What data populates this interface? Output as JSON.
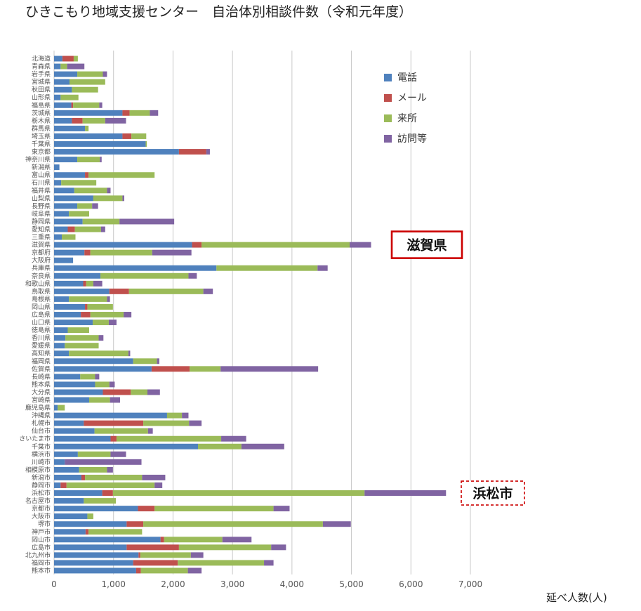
{
  "page": {
    "title": "ひきこもり地域支援センター　自治体別相談件数（令和元年度）",
    "x_unit_label": "延べ人数(人)"
  },
  "colors": {
    "phone": "#4f81bd",
    "mail": "#c0504d",
    "visit_center": "#9bbb59",
    "home_visit": "#8064a2",
    "gridline": "#c8c8c8",
    "callout_border": "#cc0000"
  },
  "callouts": [
    {
      "label": "滋賀県",
      "target": "滋賀県",
      "style": "solid"
    },
    {
      "label": "浜松市",
      "target": "浜松市",
      "style": "dashed"
    }
  ],
  "chart_data": {
    "type": "bar",
    "orientation": "horizontal",
    "stacked": true,
    "title": "ひきこもり地域支援センター　自治体別相談件数（令和元年度）",
    "xlabel": "延べ人数(人)",
    "ylabel": "",
    "xlim": [
      0,
      7000
    ],
    "xticks": [
      0,
      1000,
      2000,
      3000,
      4000,
      5000,
      6000,
      7000
    ],
    "xtick_labels": [
      "0",
      "1,000",
      "2,000",
      "3,000",
      "4,000",
      "5,000",
      "6,000",
      "7,000"
    ],
    "grid": true,
    "legend_position": "top-right",
    "categories": [
      "北海道",
      "青森県",
      "岩手県",
      "宮城県",
      "秋田県",
      "山形県",
      "福島県",
      "茨城県",
      "栃木県",
      "群馬県",
      "埼玉県",
      "千葉県",
      "東京都",
      "神奈川県",
      "新潟県",
      "富山県",
      "石川県",
      "福井県",
      "山梨県",
      "長野県",
      "岐阜県",
      "静岡県",
      "愛知県",
      "三重県",
      "滋賀県",
      "京都府",
      "大阪府",
      "兵庫県",
      "奈良県",
      "和歌山県",
      "鳥取県",
      "島根県",
      "岡山県",
      "広島県",
      "山口県",
      "徳島県",
      "香川県",
      "愛媛県",
      "高知県",
      "福岡県",
      "佐賀県",
      "長崎県",
      "熊本県",
      "大分県",
      "宮崎県",
      "鹿児島県",
      "沖縄県",
      "札幌市",
      "仙台市",
      "さいたま市",
      "千葉市",
      "横浜市",
      "川崎市",
      "相模原市",
      "新潟市",
      "静岡市",
      "浜松市",
      "名古屋市",
      "京都市",
      "大阪市",
      "堺市",
      "神戸市",
      "岡山市",
      "広島市",
      "北九州市",
      "福岡市",
      "熊本市"
    ],
    "series": [
      {
        "name": "電話",
        "values": [
          140,
          110,
          390,
          260,
          300,
          110,
          290,
          1150,
          300,
          520,
          1150,
          1540,
          2100,
          390,
          90,
          520,
          120,
          340,
          660,
          390,
          250,
          480,
          230,
          130,
          2320,
          510,
          320,
          2730,
          780,
          490,
          930,
          250,
          520,
          450,
          650,
          230,
          190,
          180,
          250,
          1330,
          1640,
          440,
          690,
          820,
          590,
          60,
          1900,
          500,
          680,
          950,
          2420,
          400,
          180,
          420,
          460,
          110,
          810,
          500,
          1410,
          560,
          1220,
          530,
          1790,
          1220,
          1420,
          1330,
          1380
        ]
      },
      {
        "name": "メール",
        "values": [
          190,
          0,
          0,
          0,
          0,
          0,
          30,
          120,
          180,
          0,
          150,
          0,
          460,
          0,
          0,
          60,
          0,
          0,
          0,
          0,
          0,
          0,
          120,
          0,
          160,
          100,
          0,
          0,
          0,
          50,
          330,
          0,
          40,
          160,
          0,
          0,
          0,
          0,
          0,
          0,
          640,
          0,
          0,
          470,
          0,
          0,
          0,
          1000,
          0,
          100,
          0,
          0,
          0,
          0,
          60,
          100,
          180,
          0,
          280,
          0,
          280,
          50,
          60,
          880,
          30,
          750,
          80
        ]
      },
      {
        "name": "来所",
        "values": [
          70,
          110,
          430,
          600,
          440,
          300,
          440,
          340,
          380,
          60,
          250,
          20,
          0,
          380,
          0,
          1110,
          590,
          550,
          490,
          250,
          340,
          620,
          440,
          230,
          2490,
          1040,
          0,
          1700,
          1480,
          120,
          1250,
          640,
          430,
          560,
          270,
          360,
          560,
          570,
          1000,
          400,
          520,
          250,
          240,
          280,
          350,
          120,
          250,
          770,
          900,
          1760,
          730,
          550,
          0,
          470,
          960,
          1480,
          4230,
          540,
          2000,
          100,
          3020,
          900,
          980,
          1550,
          850,
          1450,
          790
        ]
      },
      {
        "name": "訪問等",
        "values": [
          0,
          290,
          70,
          0,
          0,
          0,
          50,
          140,
          350,
          0,
          0,
          0,
          60,
          30,
          0,
          0,
          0,
          60,
          30,
          100,
          0,
          920,
          70,
          0,
          360,
          660,
          0,
          170,
          140,
          150,
          160,
          50,
          0,
          130,
          130,
          0,
          80,
          0,
          30,
          40,
          1640,
          70,
          90,
          210,
          170,
          0,
          110,
          210,
          80,
          420,
          720,
          260,
          1290,
          100,
          390,
          130,
          1370,
          0,
          270,
          0,
          470,
          0,
          490,
          250,
          210,
          160,
          230
        ]
      }
    ]
  }
}
